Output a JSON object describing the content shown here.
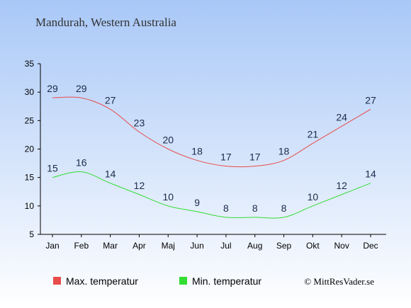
{
  "chart_data": {
    "type": "line",
    "title": "Mandurah, Western Australia",
    "categories": [
      "Jan",
      "Feb",
      "Mar",
      "Apr",
      "Maj",
      "Jun",
      "Jul",
      "Aug",
      "Sep",
      "Okt",
      "Nov",
      "Dec"
    ],
    "ylim": [
      5,
      35
    ],
    "yticks": [
      5,
      10,
      15,
      20,
      25,
      30,
      35
    ],
    "grid": false,
    "legend_position": "bottom-left",
    "series": [
      {
        "name": "Max. temperatur",
        "color": "#e84c4c",
        "values": [
          29,
          29,
          27,
          23,
          20,
          18,
          17,
          17,
          18,
          21,
          24,
          27
        ]
      },
      {
        "name": "Min. temperatur",
        "color": "#33dd33",
        "values": [
          15,
          16,
          14,
          12,
          10,
          9,
          8,
          8,
          8,
          10,
          12,
          14
        ]
      }
    ]
  },
  "credit": "© MittResVader.se",
  "colors": {
    "background_top": "#a9c8f7",
    "background_bottom": "#ffffff"
  }
}
